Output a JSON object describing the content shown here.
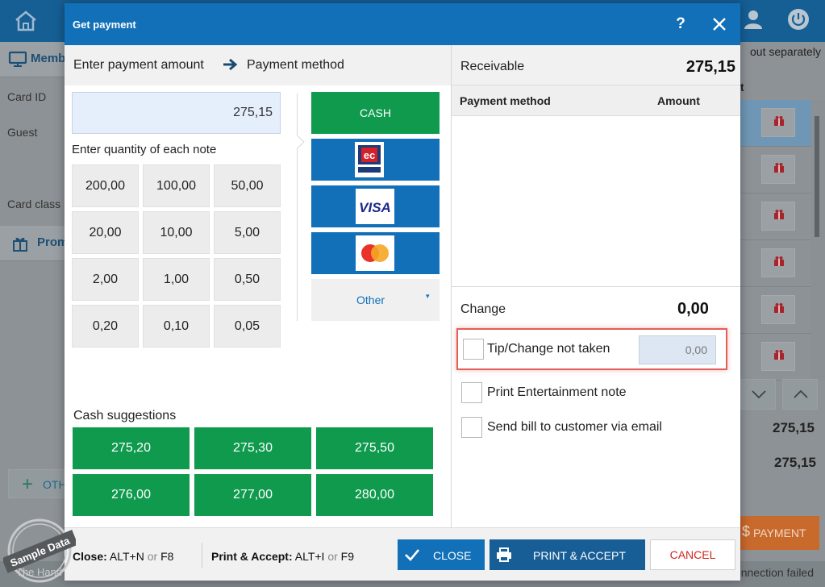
{
  "background": {
    "left_panel": {
      "header_label": "Memb",
      "rows": [
        "Card ID",
        "Guest",
        "Card class"
      ],
      "promo_label": "Prom",
      "add_button_label": "OTH"
    },
    "right_panel": {
      "header_text": "out separately",
      "column_hint": "t",
      "totals": [
        "275,15",
        "275,15"
      ],
      "payment_button_label": "PAYMENT"
    },
    "status_left": "The Hand",
    "status_right": "onnection failed"
  },
  "dialog": {
    "title": "Get payment",
    "help_label": "?",
    "steps": {
      "step1": "Enter payment amount",
      "step2": "Payment method"
    },
    "amount_value": "275,15",
    "notes_label": "Enter quantity of each note",
    "notes": [
      "200,00",
      "100,00",
      "50,00",
      "20,00",
      "10,00",
      "5,00",
      "2,00",
      "1,00",
      "0,50",
      "0,20",
      "0,10",
      "0,05"
    ],
    "payment_methods": {
      "cash_label": "CASH",
      "cards": [
        "ec-cash-icon",
        "visa-icon",
        "mastercard-icon"
      ],
      "visa_text": "VISA",
      "other_label": "Other"
    },
    "cash_suggestions_label": "Cash suggestions",
    "cash_suggestions": [
      "275,20",
      "275,30",
      "275,50",
      "276,00",
      "277,00",
      "280,00"
    ],
    "receivable_label": "Receivable",
    "receivable_value": "275,15",
    "table_headers": {
      "method": "Payment method",
      "amount": "Amount"
    },
    "change_label": "Change",
    "change_value": "0,00",
    "tip": {
      "label": "Tip/Change not taken",
      "value": "0,00"
    },
    "print_entertainment_label": "Print Entertainment note",
    "send_bill_label": "Send bill to customer via email",
    "shortcuts": {
      "close_label": "Close:",
      "close_keys": "ALT+N",
      "close_alt": "F8",
      "print_label": "Print & Accept:",
      "print_keys": "ALT+I",
      "print_alt": "F9",
      "or": "or"
    },
    "buttons": {
      "close": "CLOSE",
      "print_accept": "PRINT & ACCEPT",
      "cancel": "CANCEL"
    },
    "watermark": "Sample Data",
    "colors": {
      "primary": "#1170b8",
      "cash_green": "#0f9a4e",
      "cancel_red": "#d0251f",
      "highlight": "#e0605a"
    }
  }
}
